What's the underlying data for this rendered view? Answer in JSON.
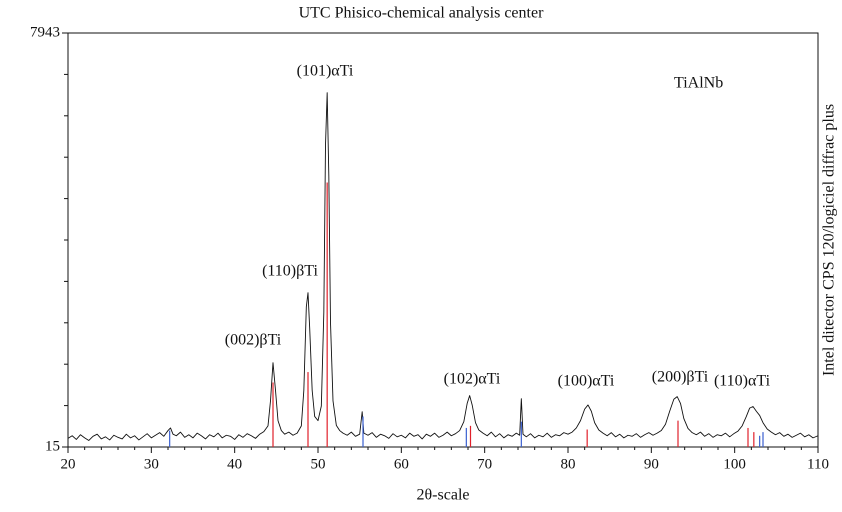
{
  "chart_data": {
    "type": "line",
    "title": "UTC Phisico-chemical analysis center",
    "xlabel": "2θ-scale",
    "ylabel": "Intel ditector CPS 120/logiciel diffrac plus",
    "xlim": [
      20,
      110
    ],
    "xticks": [
      20,
      30,
      40,
      50,
      60,
      70,
      80,
      90,
      100,
      110
    ],
    "ylim": [
      15,
      7943
    ],
    "yticks": [
      15,
      7943
    ],
    "annotations": [
      "(101)αTi",
      "TiAlNb",
      "(110)βTi",
      "(002)βTi",
      "(102)αTi",
      "(100)αTi",
      "(200)βTi",
      "(110)αTi"
    ],
    "series": [
      {
        "type": "line",
        "color": "#111111",
        "x": [
          20,
          20.5,
          21,
          21.5,
          22,
          22.5,
          23,
          23.5,
          24,
          24.5,
          25,
          25.5,
          26,
          26.5,
          27,
          27.5,
          28,
          28.5,
          29,
          29.5,
          30,
          30.5,
          31,
          31.5,
          32,
          32.3,
          32.6,
          33,
          33.5,
          34,
          34.5,
          35,
          35.5,
          36,
          36.5,
          37,
          37.5,
          38,
          38.5,
          39,
          39.5,
          40,
          40.5,
          41,
          41.5,
          42,
          42.5,
          43,
          43.5,
          44,
          44.3,
          44.6,
          44.9,
          45.2,
          45.6,
          46,
          46.5,
          47,
          47.5,
          48,
          48.3,
          48.6,
          48.8,
          49,
          49.3,
          49.6,
          50,
          50.4,
          50.7,
          50.9,
          51.1,
          51.3,
          51.5,
          51.8,
          52.2,
          52.6,
          53,
          53.5,
          54,
          54.5,
          55,
          55.3,
          55.5,
          56,
          56.5,
          57,
          57.5,
          58,
          58.5,
          59,
          59.5,
          60,
          60.5,
          61,
          61.5,
          62,
          62.5,
          63,
          63.5,
          64,
          64.5,
          65,
          65.5,
          66,
          66.5,
          67,
          67.5,
          67.9,
          68.2,
          68.5,
          68.9,
          69.3,
          69.8,
          70.3,
          70.8,
          71.3,
          71.8,
          72.3,
          72.8,
          73.3,
          73.8,
          74.2,
          74.4,
          74.6,
          75,
          75.5,
          76,
          76.5,
          77,
          77.5,
          78,
          78.5,
          79,
          79.5,
          80,
          80.5,
          81,
          81.5,
          82,
          82.4,
          82.8,
          83.2,
          83.7,
          84.2,
          84.7,
          85.2,
          85.7,
          86.2,
          86.7,
          87.2,
          87.7,
          88.2,
          88.7,
          89.2,
          89.7,
          90.2,
          90.7,
          91.2,
          91.7,
          92.2,
          92.7,
          93.1,
          93.5,
          93.9,
          94.4,
          94.9,
          95.4,
          95.9,
          96.4,
          96.9,
          97.4,
          97.9,
          98.4,
          98.9,
          99.4,
          99.9,
          100.4,
          100.9,
          101.4,
          101.8,
          102.2,
          102.6,
          103,
          103.4,
          103.9,
          104.4,
          104.9,
          105.4,
          105.9,
          106.4,
          106.9,
          107.4,
          107.9,
          108.4,
          108.9,
          109.4,
          110
        ],
        "values": [
          180,
          230,
          160,
          250,
          190,
          140,
          220,
          260,
          170,
          210,
          150,
          240,
          200,
          170,
          260,
          190,
          230,
          150,
          210,
          270,
          190,
          240,
          290,
          220,
          330,
          380,
          260,
          230,
          300,
          200,
          250,
          190,
          280,
          230,
          170,
          250,
          210,
          280,
          190,
          240,
          220,
          160,
          250,
          200,
          270,
          230,
          180,
          260,
          310,
          420,
          900,
          1630,
          1100,
          520,
          330,
          260,
          300,
          240,
          280,
          420,
          1100,
          2700,
          2970,
          2300,
          1100,
          600,
          520,
          800,
          2600,
          5800,
          6800,
          5200,
          2400,
          900,
          430,
          330,
          280,
          240,
          300,
          220,
          260,
          690,
          280,
          240,
          290,
          200,
          260,
          230,
          180,
          270,
          210,
          240,
          190,
          280,
          220,
          250,
          170,
          260,
          220,
          280,
          200,
          240,
          300,
          230,
          270,
          330,
          500,
          850,
          1000,
          820,
          480,
          340,
          280,
          230,
          300,
          210,
          270,
          190,
          250,
          220,
          280,
          240,
          940,
          260,
          210,
          270,
          190,
          240,
          210,
          280,
          200,
          250,
          230,
          290,
          260,
          300,
          380,
          520,
          740,
          820,
          700,
          480,
          340,
          280,
          230,
          290,
          210,
          260,
          190,
          240,
          220,
          270,
          200,
          250,
          290,
          240,
          280,
          330,
          450,
          700,
          930,
          980,
          850,
          560,
          370,
          290,
          250,
          300,
          220,
          270,
          200,
          250,
          230,
          280,
          210,
          270,
          320,
          420,
          600,
          760,
          790,
          700,
          620,
          480,
          360,
          300,
          250,
          290,
          220,
          260,
          200,
          240,
          280,
          210,
          250,
          190,
          230
        ]
      },
      {
        "type": "stick",
        "color": "#e0202a",
        "x": [
          44.6,
          48.8,
          51.1,
          68.3,
          82.3,
          93.2,
          101.6,
          102.3
        ],
        "values": [
          1250,
          1450,
          5080,
          420,
          350,
          520,
          380,
          300
        ]
      },
      {
        "type": "stick",
        "color": "#3a5fd0",
        "x": [
          32.2,
          55.4,
          67.8,
          74.4,
          103.0,
          103.4
        ],
        "values": [
          330,
          600,
          380,
          500,
          230,
          300
        ]
      }
    ]
  }
}
